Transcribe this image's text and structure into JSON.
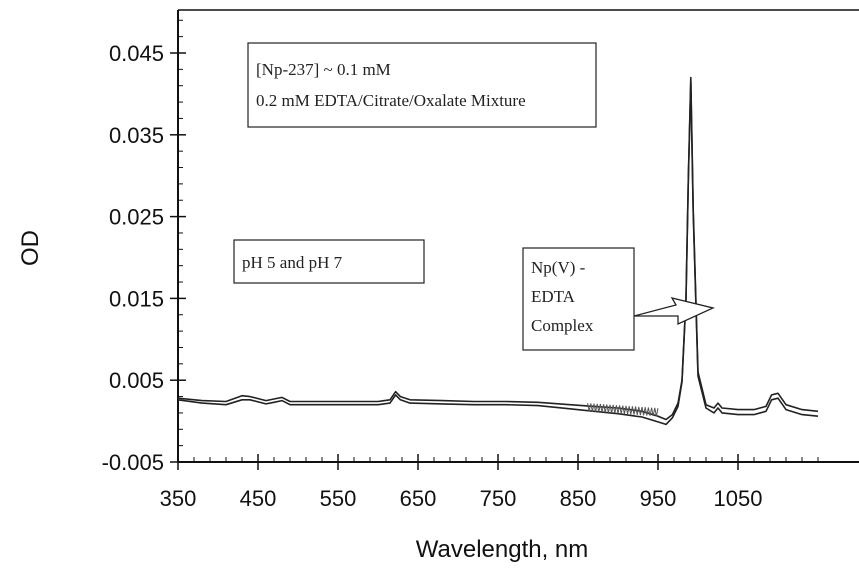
{
  "chart_data": {
    "type": "line",
    "title": "",
    "xlabel": "Wavelength, nm",
    "ylabel": "OD",
    "xlim": [
      350,
      1150
    ],
    "ylim": [
      -0.005,
      0.05
    ],
    "x_ticks": [
      "350",
      "450",
      "550",
      "650",
      "750",
      "850",
      "950",
      "1050"
    ],
    "y_ticks": [
      "0.045",
      "0.035",
      "0.025",
      "0.015",
      "0.005",
      "-0.005"
    ],
    "x_tick_values": [
      350,
      450,
      550,
      650,
      750,
      850,
      950,
      1050
    ],
    "y_tick_values": [
      0.045,
      0.035,
      0.025,
      0.015,
      0.005,
      -0.005
    ],
    "grid": false,
    "series": [
      {
        "x": [
          350,
          380,
          410,
          430,
          440,
          460,
          470,
          480,
          490,
          520,
          560,
          600,
          615,
          622,
          628,
          640,
          680,
          720,
          760,
          800,
          840,
          870,
          900,
          930,
          950,
          960,
          968,
          975,
          980,
          985,
          988,
          991,
          994,
          1000,
          1010,
          1020,
          1025,
          1030,
          1050,
          1070,
          1085,
          1092,
          1100,
          1110,
          1130,
          1150
        ],
        "values": [
          0.0028,
          0.0025,
          0.0024,
          0.0031,
          0.003,
          0.0025,
          0.0027,
          0.0029,
          0.0024,
          0.0024,
          0.0024,
          0.0024,
          0.0026,
          0.0036,
          0.003,
          0.0026,
          0.0025,
          0.0024,
          0.0024,
          0.0023,
          0.002,
          0.0018,
          0.0016,
          0.0012,
          0.0006,
          0.0002,
          0.0008,
          0.0022,
          0.005,
          0.015,
          0.03,
          0.042,
          0.026,
          0.006,
          0.002,
          0.0016,
          0.0022,
          0.0016,
          0.0014,
          0.0014,
          0.0018,
          0.0032,
          0.0034,
          0.002,
          0.0014,
          0.0012
        ]
      },
      {
        "x": [
          350,
          380,
          410,
          430,
          440,
          460,
          470,
          480,
          490,
          520,
          560,
          600,
          615,
          622,
          628,
          640,
          680,
          720,
          760,
          800,
          840,
          870,
          900,
          930,
          950,
          960,
          968,
          975,
          980,
          985,
          988,
          991,
          994,
          1000,
          1010,
          1020,
          1025,
          1030,
          1050,
          1070,
          1085,
          1092,
          1100,
          1110,
          1130,
          1150
        ],
        "values": [
          0.0026,
          0.0022,
          0.002,
          0.0026,
          0.0026,
          0.0021,
          0.0023,
          0.0025,
          0.002,
          0.002,
          0.002,
          0.002,
          0.0022,
          0.0032,
          0.0026,
          0.0022,
          0.0021,
          0.002,
          0.002,
          0.0019,
          0.0015,
          0.0012,
          0.0009,
          0.0005,
          -0.0001,
          -0.0004,
          0.0004,
          0.0018,
          0.0048,
          0.015,
          0.03,
          0.0415,
          0.0255,
          0.0055,
          0.0016,
          0.001,
          0.0016,
          0.001,
          0.0008,
          0.0008,
          0.0012,
          0.0026,
          0.0028,
          0.0014,
          0.0008,
          0.0006
        ]
      }
    ],
    "annotations": {
      "info_line1": "[Np-237] ~ 0.1 mM",
      "info_line2": "0.2 mM EDTA/Citrate/Oxalate Mixture",
      "ph_label": "pH 5 and pH 7",
      "complex_line1": "Np(V) -",
      "complex_line2": "EDTA",
      "complex_line3": "Complex"
    },
    "colors": {
      "line": "#222222",
      "axis": "#111111"
    }
  }
}
